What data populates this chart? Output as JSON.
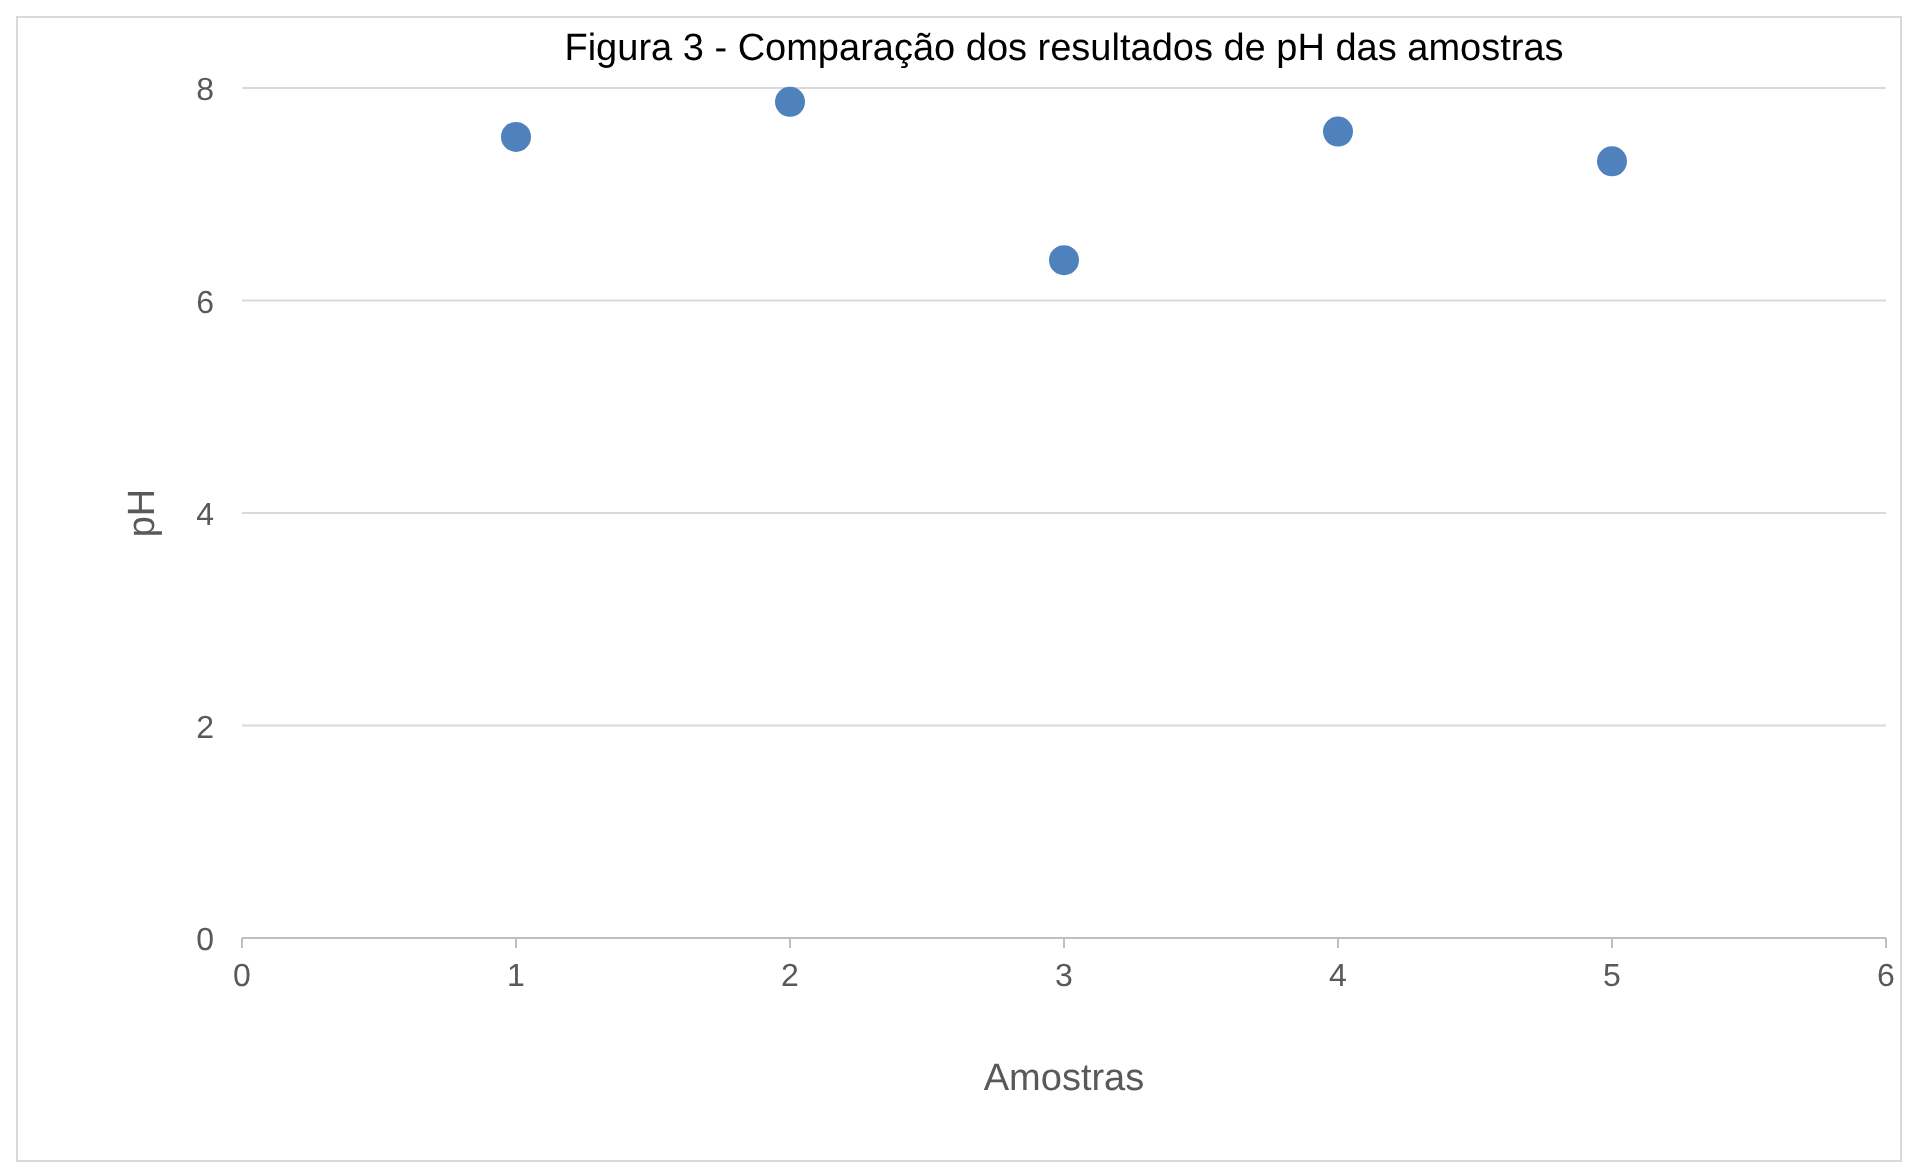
{
  "chart_data": {
    "type": "scatter",
    "title": "Figura 3 - Comparação dos resultados de pH das amostras",
    "xlabel": "Amostras",
    "ylabel": "pH",
    "x": [
      1,
      2,
      3,
      4,
      5
    ],
    "series": [
      {
        "color": "#4f81bd",
        "values": [
          7.54,
          7.87,
          6.38,
          7.59,
          7.31
        ]
      }
    ],
    "xlim": [
      0,
      6
    ],
    "xticks": [
      0,
      1,
      2,
      3,
      4,
      5,
      6
    ],
    "ylim": [
      0,
      8
    ],
    "yticks": [
      0,
      2,
      4,
      6,
      8
    ],
    "grid": "y",
    "marker": "circle"
  }
}
